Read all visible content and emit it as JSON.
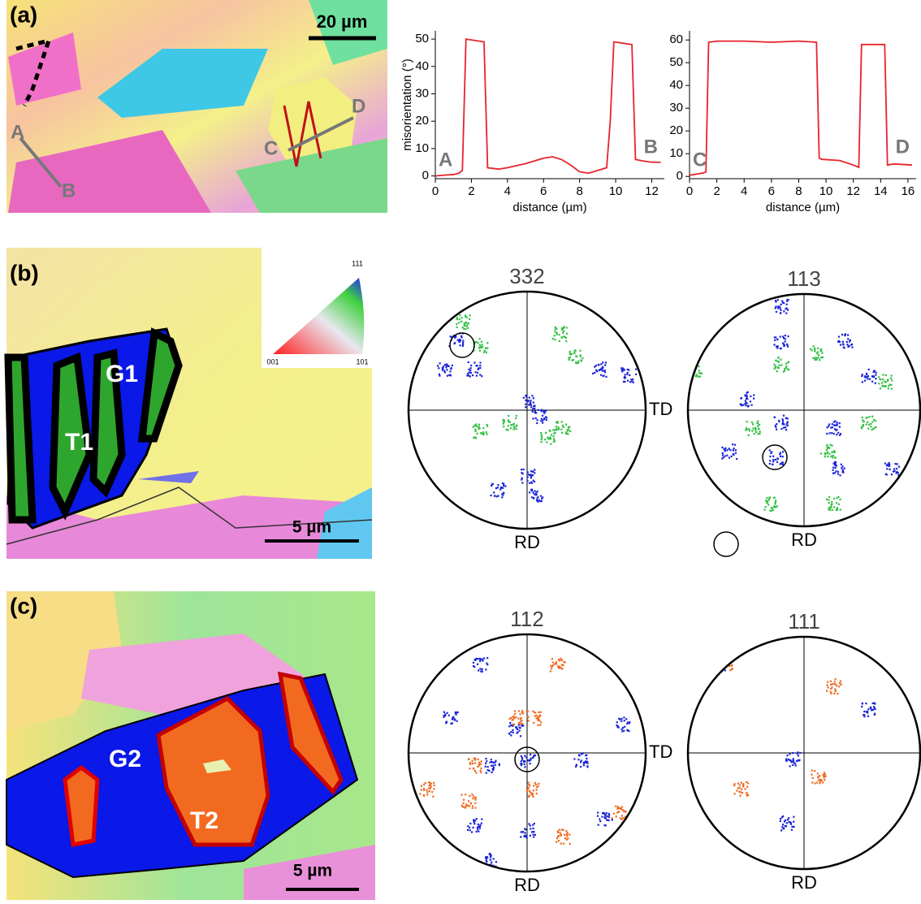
{
  "chart_data": [
    {
      "type": "line",
      "y_label": "misorientation (°)",
      "x_label": "distance (µm)",
      "annotations": [
        "A",
        "B"
      ],
      "x": [
        0,
        0.5,
        1,
        1.3,
        1.5,
        1.7,
        2.7,
        2.9,
        3.5,
        4,
        5,
        6,
        6.5,
        7,
        7.5,
        8,
        8.5,
        9,
        9.5,
        9.7,
        9.9,
        10.9,
        11.1,
        11.5,
        12,
        12.5
      ],
      "series": [
        {
          "color": "#e8232b",
          "values": [
            0,
            0.3,
            0.5,
            1,
            2,
            50,
            49,
            3,
            2.5,
            3,
            4.5,
            6.5,
            7,
            6,
            4,
            1.5,
            1,
            2,
            3,
            20,
            49,
            48,
            6,
            5.5,
            5,
            5
          ]
        }
      ],
      "xlim": [
        0,
        12.7
      ],
      "ylim": [
        -1,
        53
      ],
      "xticks": [
        0,
        2,
        4,
        6,
        8,
        10,
        12
      ],
      "yticks": [
        0,
        10,
        20,
        30,
        40,
        50
      ]
    },
    {
      "type": "line",
      "x_label": "distance (µm)",
      "annotations": [
        "C",
        "D"
      ],
      "x": [
        0,
        0.5,
        1,
        1.2,
        1.4,
        2,
        4,
        6,
        8,
        9.3,
        9.5,
        9.7,
        11,
        12,
        12.4,
        12.6,
        14.3,
        14.5,
        15,
        16.3
      ],
      "series": [
        {
          "color": "#e8232b",
          "values": [
            0.5,
            1,
            1.5,
            2,
            59,
            59.5,
            59.5,
            59,
            59.5,
            59,
            8,
            7.5,
            7,
            5,
            4,
            58,
            58,
            5,
            5.5,
            5
          ]
        }
      ],
      "xlim": [
        0,
        16.6
      ],
      "ylim": [
        -1,
        64
      ],
      "xticks": [
        0,
        2,
        4,
        6,
        8,
        10,
        12,
        14,
        16
      ],
      "yticks": [
        0,
        10,
        20,
        30,
        40,
        50,
        60
      ]
    }
  ],
  "panels": {
    "a": {
      "label": "(a)",
      "scale_bar": "20 µm",
      "points": [
        "A",
        "B",
        "C",
        "D"
      ]
    },
    "b": {
      "label": "(b)",
      "grain": "G1",
      "twin": "T1",
      "scale_bar": "5 µm",
      "ipf_corners": [
        "111",
        "001",
        "101"
      ]
    },
    "c": {
      "label": "(c)",
      "grain": "G2",
      "twin": "T2",
      "scale_bar": "5 µm"
    }
  },
  "pole_figures": [
    {
      "title": "332"
    },
    {
      "title": "113"
    },
    {
      "title": "112"
    },
    {
      "title": "111"
    }
  ],
  "directions": {
    "td": "TD",
    "rd": "RD"
  }
}
